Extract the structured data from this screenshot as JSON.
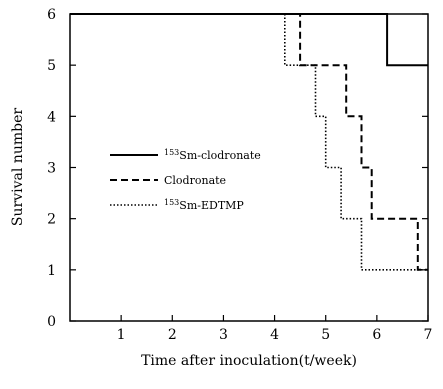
{
  "chart_data": {
    "type": "line",
    "step": true,
    "title": "",
    "xlabel": "Time after inoculation(t/week)",
    "ylabel": "Survival number",
    "xlim": [
      0,
      7
    ],
    "ylim": [
      0,
      6
    ],
    "xticks": [
      "1",
      "2",
      "3",
      "4",
      "5",
      "6",
      "7"
    ],
    "yticks": [
      "0",
      "1",
      "2",
      "3",
      "4",
      "5",
      "6"
    ],
    "grid": false,
    "legend_position": "center-left",
    "series": [
      {
        "name_sup": "153",
        "name_main": "Sm-clodronate",
        "line": "solid",
        "color": "#000000",
        "x": [
          0,
          6.2,
          6.2,
          7
        ],
        "y": [
          6,
          6,
          5,
          5
        ]
      },
      {
        "name_sup": "",
        "name_main": "Clodronate",
        "line": "dashed",
        "color": "#000000",
        "x": [
          4.2,
          4.5,
          4.5,
          5.4,
          5.4,
          5.7,
          5.7,
          5.9,
          5.9,
          6.8,
          6.8,
          7
        ],
        "y": [
          6,
          6,
          5,
          5,
          4,
          4,
          3,
          3,
          2,
          2,
          1,
          1
        ]
      },
      {
        "name_sup": "153",
        "name_main": "Sm-EDTMP",
        "line": "dotted",
        "color": "#000000",
        "x": [
          4.2,
          4.2,
          4.8,
          4.8,
          5.0,
          5.0,
          5.3,
          5.3,
          5.7,
          5.7,
          7
        ],
        "y": [
          6,
          5,
          5,
          4,
          4,
          3,
          3,
          2,
          2,
          1,
          1
        ]
      }
    ]
  }
}
